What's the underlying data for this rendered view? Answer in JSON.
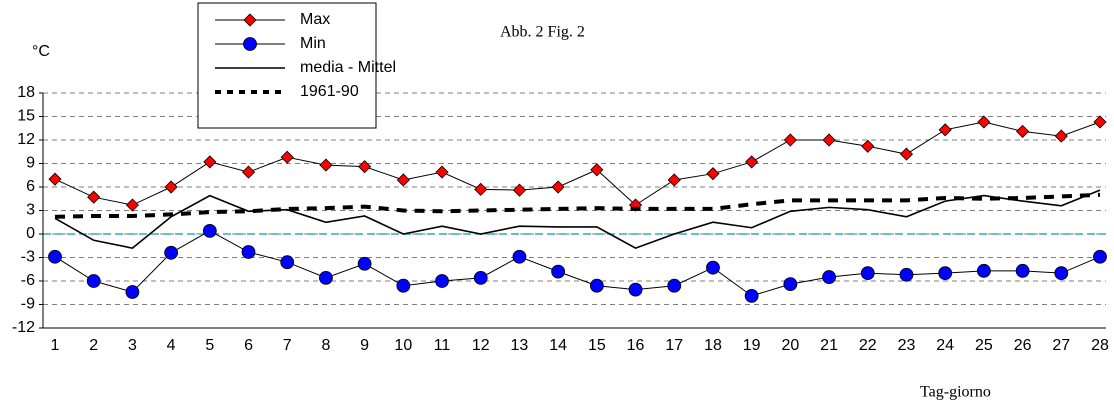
{
  "chart_data": {
    "type": "line",
    "title": "Abb. 2   Fig. 2",
    "y_label": "°C",
    "x_label": "Tag-giorno",
    "categories": [
      "1",
      "2",
      "3",
      "4",
      "5",
      "6",
      "7",
      "8",
      "9",
      "10",
      "11",
      "12",
      "13",
      "14",
      "15",
      "16",
      "17",
      "18",
      "19",
      "20",
      "21",
      "22",
      "23",
      "24",
      "25",
      "26",
      "27",
      "28"
    ],
    "ylim": [
      -12,
      18
    ],
    "yticks": [
      -12,
      -9,
      -6,
      -3,
      0,
      3,
      6,
      9,
      12,
      15,
      18
    ],
    "grid": true,
    "legend": "top-left",
    "series": [
      {
        "name": "Max",
        "color": "#ff0000",
        "marker": "diamond",
        "values": [
          7,
          4.7,
          3.7,
          6,
          9.2,
          7.9,
          9.8,
          8.8,
          8.6,
          6.9,
          7.9,
          5.7,
          5.6,
          6,
          8.2,
          3.7,
          6.9,
          7.7,
          9.2,
          12,
          12,
          11.2,
          10.2,
          13.3,
          14.3,
          13.1,
          12.5,
          14.3
        ]
      },
      {
        "name": "Min",
        "color": "#0000ff",
        "marker": "circle",
        "values": [
          -2.9,
          -6,
          -7.4,
          -2.4,
          0.4,
          -2.3,
          -3.6,
          -5.6,
          -3.8,
          -6.6,
          -6,
          -5.6,
          -2.9,
          -4.8,
          -6.6,
          -7.1,
          -6.6,
          -4.3,
          -7.9,
          -6.4,
          -5.5,
          -5,
          -5.2,
          -5,
          -4.7,
          -4.7,
          -5,
          -2.9
        ]
      },
      {
        "name": "media - Mittel",
        "color": "#000000",
        "marker": "none",
        "values": [
          2,
          -0.8,
          -1.8,
          2.2,
          4.9,
          2.9,
          3.1,
          1.5,
          2.3,
          0,
          1,
          0,
          1,
          0.9,
          0.9,
          -1.8,
          0,
          1.5,
          0.8,
          2.9,
          3.4,
          3.1,
          2.2,
          4.2,
          4.9,
          4.2,
          3.6,
          5.6
        ]
      },
      {
        "name": "1961-90",
        "color": "#000000",
        "marker": "none",
        "dashed": true,
        "values": [
          2.2,
          2.3,
          2.3,
          2.5,
          2.8,
          2.9,
          3.2,
          3.3,
          3.5,
          3,
          2.9,
          3,
          3.1,
          3.2,
          3.3,
          3.2,
          3.2,
          3.2,
          3.8,
          4.3,
          4.3,
          4.3,
          4.3,
          4.6,
          4.5,
          4.6,
          4.8,
          5
        ]
      }
    ]
  }
}
